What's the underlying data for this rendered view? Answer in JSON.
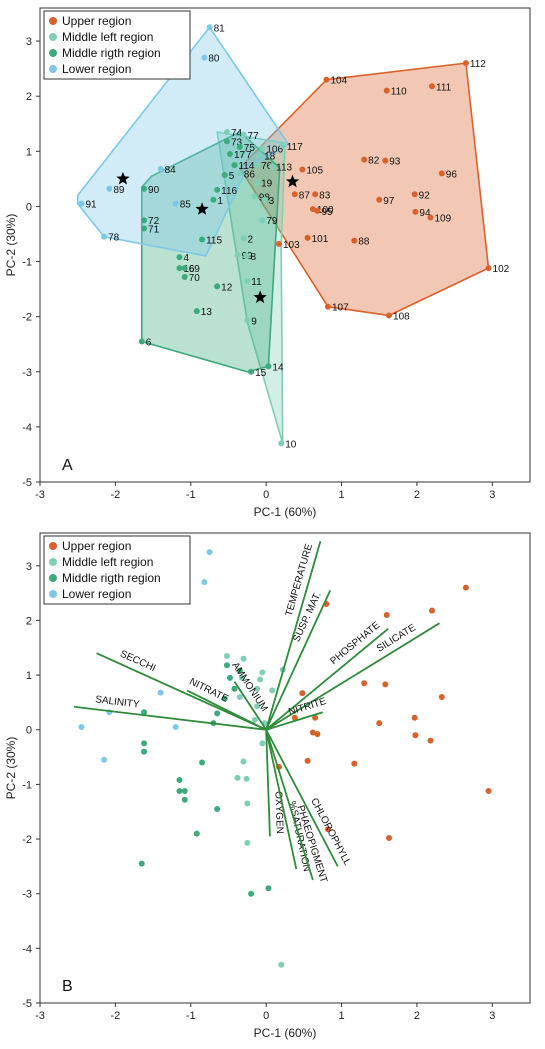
{
  "colors": {
    "upper": "#d9622b",
    "middle_left": "#7fcfb6",
    "middle_right": "#3daa7b",
    "lower": "#7cc8e8",
    "vector": "#2e8b3a",
    "axis": "#333333",
    "star": "#000000"
  },
  "chart_data": [
    {
      "type": "scatter",
      "panel_label": "A",
      "xlabel": "PC-1 (60%)",
      "ylabel": "PC-2 (30%)",
      "xlim": [
        -3,
        3.5
      ],
      "ylim": [
        -5,
        3.6
      ],
      "xticks": [
        -3,
        -2,
        -1,
        0,
        1,
        2,
        3
      ],
      "yticks": [
        -5,
        -4,
        -3,
        -2,
        -1,
        0,
        1,
        2,
        3
      ],
      "grid": false,
      "legend": "top-left",
      "legend_entries": [
        "Upper region",
        "Middle left region",
        "Middle rigth region",
        "Lower region"
      ],
      "series": [
        {
          "name": "Upper region",
          "color_key": "upper",
          "hull": [
            [
              0.8,
              2.3
            ],
            [
              2.65,
              2.6
            ],
            [
              2.95,
              -1.12
            ],
            [
              1.63,
              -1.98
            ],
            [
              0.82,
              -1.82
            ],
            [
              -0.35,
              0.7
            ]
          ],
          "points": [
            {
              "label": "104",
              "x": 0.8,
              "y": 2.3
            },
            {
              "label": "110",
              "x": 1.6,
              "y": 2.1
            },
            {
              "label": "111",
              "x": 2.2,
              "y": 2.18
            },
            {
              "label": "112",
              "x": 2.65,
              "y": 2.6
            },
            {
              "label": "105",
              "x": 0.48,
              "y": 0.67
            },
            {
              "label": "82",
              "x": 1.3,
              "y": 0.85
            },
            {
              "label": "93",
              "x": 1.58,
              "y": 0.83
            },
            {
              "label": "96",
              "x": 2.33,
              "y": 0.6
            },
            {
              "label": "87",
              "x": 0.38,
              "y": 0.22
            },
            {
              "label": "83",
              "x": 0.65,
              "y": 0.22
            },
            {
              "label": "92",
              "x": 1.97,
              "y": 0.22
            },
            {
              "label": "97",
              "x": 1.5,
              "y": 0.12
            },
            {
              "label": "100",
              "x": 0.62,
              "y": -0.05
            },
            {
              "label": "95",
              "x": 0.68,
              "y": -0.08
            },
            {
              "label": "94",
              "x": 1.98,
              "y": -0.1
            },
            {
              "label": "109",
              "x": 2.18,
              "y": -0.2
            },
            {
              "label": "103",
              "x": 0.17,
              "y": -0.68
            },
            {
              "label": "101",
              "x": 0.55,
              "y": -0.57
            },
            {
              "label": "88",
              "x": 1.17,
              "y": -0.62
            },
            {
              "label": "102",
              "x": 2.95,
              "y": -1.12
            },
            {
              "label": "107",
              "x": 0.82,
              "y": -1.82
            },
            {
              "label": "108",
              "x": 1.63,
              "y": -1.98
            }
          ],
          "star": {
            "x": 0.35,
            "y": 0.45
          }
        },
        {
          "name": "Middle left region",
          "color_key": "middle_left",
          "hull": [
            [
              -0.65,
              1.35
            ],
            [
              0.25,
              1.15
            ],
            [
              0.2,
              -0.75
            ],
            [
              0.22,
              -4.3
            ],
            [
              -0.25,
              -2.1
            ]
          ],
          "points": [
            {
              "label": "74",
              "x": -0.52,
              "y": 1.35
            },
            {
              "label": "77",
              "x": -0.3,
              "y": 1.3
            },
            {
              "label": "106",
              "x": -0.05,
              "y": 1.05
            },
            {
              "label": "117",
              "x": 0.22,
              "y": 1.1
            },
            {
              "label": "7",
              "x": -0.32,
              "y": 0.95
            },
            {
              "label": "18",
              "x": -0.08,
              "y": 0.92
            },
            {
              "label": "76",
              "x": -0.12,
              "y": 0.75
            },
            {
              "label": "113",
              "x": 0.08,
              "y": 0.72
            },
            {
              "label": "86",
              "x": -0.35,
              "y": 0.6
            },
            {
              "label": "19",
              "x": -0.12,
              "y": 0.43
            },
            {
              "label": "98",
              "x": -0.15,
              "y": 0.18
            },
            {
              "label": "3",
              "x": -0.02,
              "y": 0.12
            },
            {
              "label": "79",
              "x": -0.05,
              "y": -0.25
            },
            {
              "label": "2",
              "x": -0.3,
              "y": -0.58
            },
            {
              "label": "99",
              "x": -0.38,
              "y": -0.88
            },
            {
              "label": "8",
              "x": -0.26,
              "y": -0.9
            },
            {
              "label": "11",
              "x": -0.25,
              "y": -1.35
            },
            {
              "label": "9",
              "x": -0.25,
              "y": -2.07
            },
            {
              "label": "10",
              "x": 0.2,
              "y": -4.3
            }
          ],
          "star": {
            "x": -0.08,
            "y": -1.65
          }
        },
        {
          "name": "Middle rigth region",
          "color_key": "middle_right",
          "hull": [
            [
              -0.35,
              1.35
            ],
            [
              0.18,
              0.7
            ],
            [
              0.03,
              -2.9
            ],
            [
              -0.25,
              -3.0
            ],
            [
              -1.65,
              -2.45
            ],
            [
              -1.65,
              -0.3
            ],
            [
              -1.65,
              0.35
            ],
            [
              -1.52,
              0.55
            ]
          ],
          "points": [
            {
              "label": "73",
              "x": -0.52,
              "y": 1.18
            },
            {
              "label": "75",
              "x": -0.35,
              "y": 1.08
            },
            {
              "label": "17",
              "x": -0.48,
              "y": 0.95
            },
            {
              "label": "114",
              "x": -0.42,
              "y": 0.75
            },
            {
              "label": "5",
              "x": -0.55,
              "y": 0.57
            },
            {
              "label": "116",
              "x": -0.65,
              "y": 0.3
            },
            {
              "label": "1",
              "x": -0.7,
              "y": 0.12
            },
            {
              "label": "90",
              "x": -1.62,
              "y": 0.32
            },
            {
              "label": "72",
              "x": -1.62,
              "y": -0.25
            },
            {
              "label": "71",
              "x": -1.62,
              "y": -0.4
            },
            {
              "label": "115",
              "x": -0.85,
              "y": -0.6
            },
            {
              "label": "4",
              "x": -1.15,
              "y": -0.92
            },
            {
              "label": "16",
              "x": -1.15,
              "y": -1.12
            },
            {
              "label": "69",
              "x": -1.08,
              "y": -1.12
            },
            {
              "label": "70",
              "x": -1.08,
              "y": -1.28
            },
            {
              "label": "12",
              "x": -0.65,
              "y": -1.45
            },
            {
              "label": "13",
              "x": -0.92,
              "y": -1.9
            },
            {
              "label": "6",
              "x": -1.65,
              "y": -2.45
            },
            {
              "label": "15",
              "x": -0.2,
              "y": -3.0
            },
            {
              "label": "14",
              "x": 0.03,
              "y": -2.9
            }
          ],
          "star": {
            "x": -0.85,
            "y": -0.05
          }
        },
        {
          "name": "Lower region",
          "color_key": "lower",
          "hull": [
            [
              -0.75,
              3.25
            ],
            [
              0.3,
              1.12
            ],
            [
              -0.25,
              0.7
            ],
            [
              -0.8,
              -0.9
            ],
            [
              -2.15,
              -0.55
            ],
            [
              -2.5,
              0.05
            ],
            [
              -2.5,
              0.2
            ]
          ],
          "points": [
            {
              "label": "81",
              "x": -0.75,
              "y": 3.25
            },
            {
              "label": "80",
              "x": -0.82,
              "y": 2.7
            },
            {
              "label": "84",
              "x": -1.4,
              "y": 0.68
            },
            {
              "label": "89",
              "x": -2.08,
              "y": 0.32
            },
            {
              "label": "91",
              "x": -2.45,
              "y": 0.05
            },
            {
              "label": "85",
              "x": -1.2,
              "y": 0.05
            },
            {
              "label": "78",
              "x": -2.15,
              "y": -0.55
            }
          ],
          "star": {
            "x": -1.9,
            "y": 0.5
          }
        }
      ]
    },
    {
      "type": "scatter",
      "panel_label": "B",
      "xlabel": "PC-1 (60%)",
      "ylabel": "PC-2 (30%)",
      "xlim": [
        -3,
        3.5
      ],
      "ylim": [
        -5,
        3.6
      ],
      "xticks": [
        -3,
        -2,
        -1,
        0,
        1,
        2,
        3
      ],
      "yticks": [
        -5,
        -4,
        -3,
        -2,
        -1,
        0,
        1,
        2,
        3
      ],
      "grid": false,
      "legend": "top-left",
      "legend_entries": [
        "Upper region",
        "Middle left region",
        "Middle rigth region",
        "Lower region"
      ],
      "loadings": [
        {
          "label": "TEMPERATURE",
          "x": 0.72,
          "y": 3.45
        },
        {
          "label": "SUSP. MAT.",
          "x": 0.85,
          "y": 2.55
        },
        {
          "label": "PHOSPHATE",
          "x": 1.62,
          "y": 1.85
        },
        {
          "label": "SILICATE",
          "x": 2.3,
          "y": 1.95
        },
        {
          "label": "NITRITE",
          "x": 0.75,
          "y": 0.32
        },
        {
          "label": "SECCHI",
          "x": -2.25,
          "y": 1.4
        },
        {
          "label": "NITRATE",
          "x": -1.05,
          "y": 0.72
        },
        {
          "label": "AMMONIUM",
          "x": -0.42,
          "y": 0.88
        },
        {
          "label": "SALINITY",
          "x": -2.55,
          "y": 0.42
        },
        {
          "label": "OXYGEN",
          "x": 0.05,
          "y": -1.95
        },
        {
          "label": "%SATURATION",
          "x": 0.4,
          "y": -2.55
        },
        {
          "label": "PHAEOPIGMENT",
          "x": 0.62,
          "y": -2.75
        },
        {
          "label": "CHLOROPHYLL",
          "x": 0.95,
          "y": -2.5
        }
      ]
    }
  ]
}
